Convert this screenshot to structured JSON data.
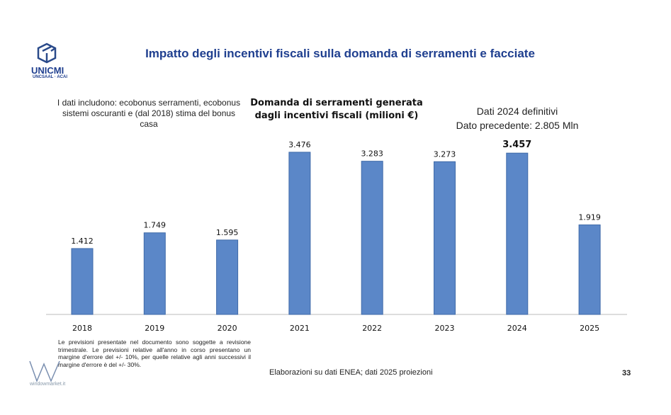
{
  "header": {
    "title": "Impatto degli incentivi fiscali sulla domanda di serramenti e facciate",
    "logo_text": "UNICMI",
    "logo_sub": "UNCSAAL · ACAI"
  },
  "notes": {
    "left": "I dati includono: ecobonus serramenti, ecobonus sistemi oscuranti e (dal 2018) stima del bonus casa",
    "right_line1": "Dati 2024 definitivi",
    "right_line2": "Dato precedente: 2.805 Mln",
    "disclaimer": "Le previsioni presentate nel documento sono soggette a revisione trimestrale. Le previsioni relative all'anno in corso presentano un margine d'errore del +/- 10%, per quelle relative agli anni successivi il margine d'errore è del +/- 30%.",
    "source": "Elaborazioni su dati ENEA; dati 2025 proiezioni",
    "page_number": "33",
    "watermark": "windowmarket.it"
  },
  "chart_data": {
    "type": "bar",
    "title": "Domanda di serramenti generata dagli incentivi fiscali (milioni €)",
    "categories": [
      "2018",
      "2019",
      "2020",
      "2021",
      "2022",
      "2023",
      "2024",
      "2025"
    ],
    "values": [
      1.412,
      1.749,
      1.595,
      3.476,
      3.283,
      3.273,
      3.457,
      1.919
    ],
    "labels": [
      "1.412",
      "1.749",
      "1.595",
      "3.476",
      "3.283",
      "3.273",
      "3.457",
      "1.919"
    ],
    "highlight_index": 6,
    "bar_color": "#5b87c8",
    "ylim": [
      0,
      3.5
    ],
    "xlabel": "",
    "ylabel": "",
    "grid": false
  }
}
